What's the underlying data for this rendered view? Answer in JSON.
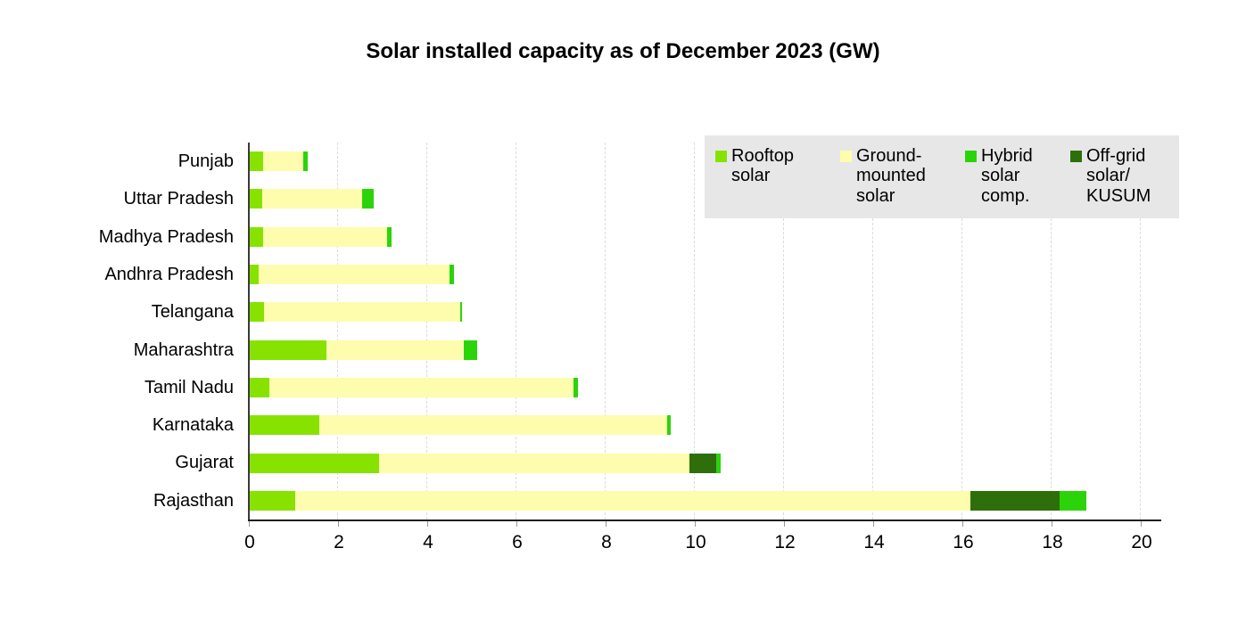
{
  "title": "Solar installed capacity as of December 2023 (GW)",
  "colors": {
    "rooftop": "#88E200",
    "ground": "#FDFDAD",
    "hybrid": "#2BD409",
    "offgrid": "#2E6F0C",
    "legend_bg": "#E7E7E7",
    "gridline": "#DCDCDC",
    "axis": "#1F1F1F"
  },
  "legend": {
    "position": "top-right inside plot",
    "items": [
      {
        "label": "Rooftop solar",
        "series_key": "rooftop"
      },
      {
        "label": "Ground-mounted solar",
        "series_key": "ground"
      },
      {
        "label": "Hybrid solar comp.",
        "series_key": "hybrid"
      },
      {
        "label": "Off-grid solar/ KUSUM",
        "series_key": "offgrid"
      }
    ]
  },
  "chart_data": {
    "type": "bar",
    "orientation": "horizontal",
    "stacked": true,
    "title": "Solar installed capacity as of December 2023 (GW)",
    "xlabel": "",
    "ylabel": "",
    "xlim": [
      0,
      20
    ],
    "x_ticks": [
      0,
      2,
      4,
      6,
      8,
      10,
      12,
      14,
      16,
      18,
      20
    ],
    "grid": "vertical dashed",
    "categories": [
      "Punjab",
      "Uttar Pradesh",
      "Madhya Pradesh",
      "Andhra Pradesh",
      "Telangana",
      "Maharashtra",
      "Tamil Nadu",
      "Karnataka",
      "Gujarat",
      "Rajasthan"
    ],
    "series": [
      {
        "key": "rooftop",
        "name": "Rooftop solar",
        "values": [
          0.3,
          0.27,
          0.3,
          0.2,
          0.32,
          1.71,
          0.43,
          1.55,
          2.89,
          1.02
        ]
      },
      {
        "key": "ground",
        "name": "Ground-mounted solar",
        "values": [
          0.9,
          2.25,
          2.78,
          4.28,
          4.4,
          3.08,
          6.83,
          7.81,
          6.97,
          15.14
        ]
      },
      {
        "key": "hybrid",
        "name": "Hybrid solar comp.",
        "values": [
          0.1,
          0.25,
          0.1,
          0.1,
          0.03,
          0.3,
          0.1,
          0.07,
          0.1,
          0.59
        ]
      },
      {
        "key": "offgrid",
        "name": "Off-grid solar/ KUSUM",
        "values": [
          0,
          0,
          0,
          0,
          0,
          0,
          0,
          0,
          0.6,
          2.0
        ]
      }
    ],
    "stack_order": [
      "rooftop",
      "ground",
      "offgrid",
      "hybrid"
    ],
    "totals": [
      1.3,
      2.77,
      3.18,
      4.58,
      4.75,
      5.09,
      7.36,
      9.43,
      10.56,
      18.75
    ]
  }
}
